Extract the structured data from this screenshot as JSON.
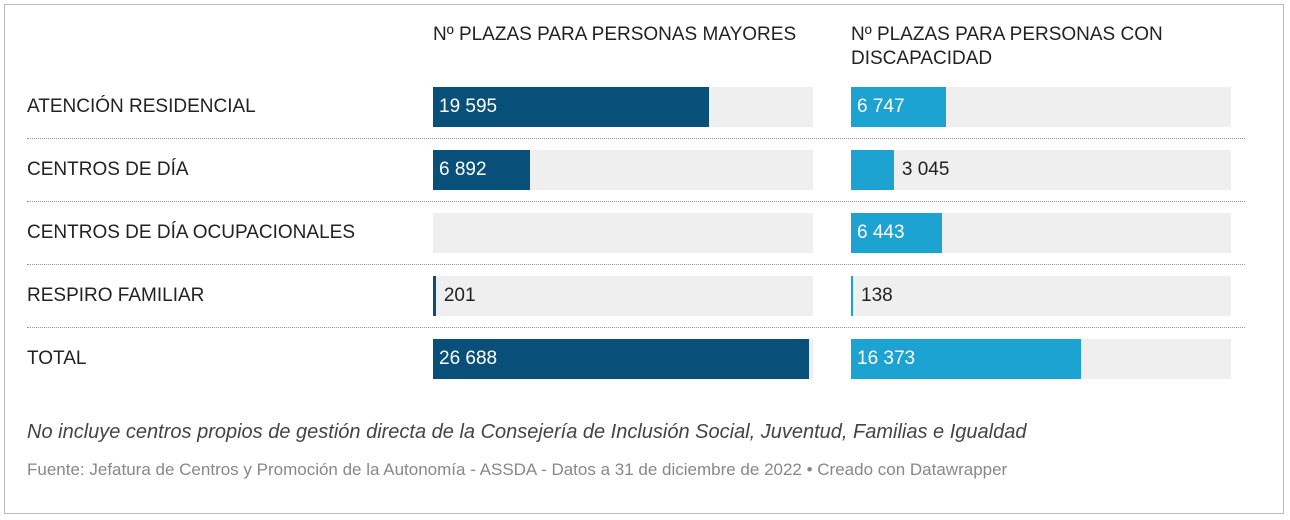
{
  "chart_data": {
    "type": "bar",
    "categories": [
      "ATENCIÓN RESIDENCIAL",
      "CENTROS DE DÍA",
      "CENTROS DE DÍA OCUPACIONALES",
      "RESPIRO FAMILIAR",
      "TOTAL"
    ],
    "series": [
      {
        "name": "Nº PLAZAS PARA PERSONAS MAYORES",
        "color": "#08507a",
        "values": [
          19595,
          6892,
          null,
          201,
          26688
        ],
        "value_labels": [
          "19 595",
          "6 892",
          null,
          "201",
          "26 688"
        ]
      },
      {
        "name": "Nº PLAZAS PARA PERSONAS CON DISCAPACIDAD",
        "color": "#1ca3d1",
        "values": [
          6747,
          3045,
          6443,
          138,
          16373
        ],
        "value_labels": [
          "6 747",
          "3 045",
          "6 443",
          "138",
          "16 373"
        ]
      }
    ],
    "xlim": [
      0,
      27000
    ],
    "note": "No incluye centros propios de gestión directa de la Consejería de Inclusión Social, Juventud, Familias e Igualdad",
    "source": "Fuente: Jefatura de Centros y Promoción de la Autonomía - ASSDA - Datos a 31 de diciembre de 2022 • Creado con Datawrapper"
  }
}
